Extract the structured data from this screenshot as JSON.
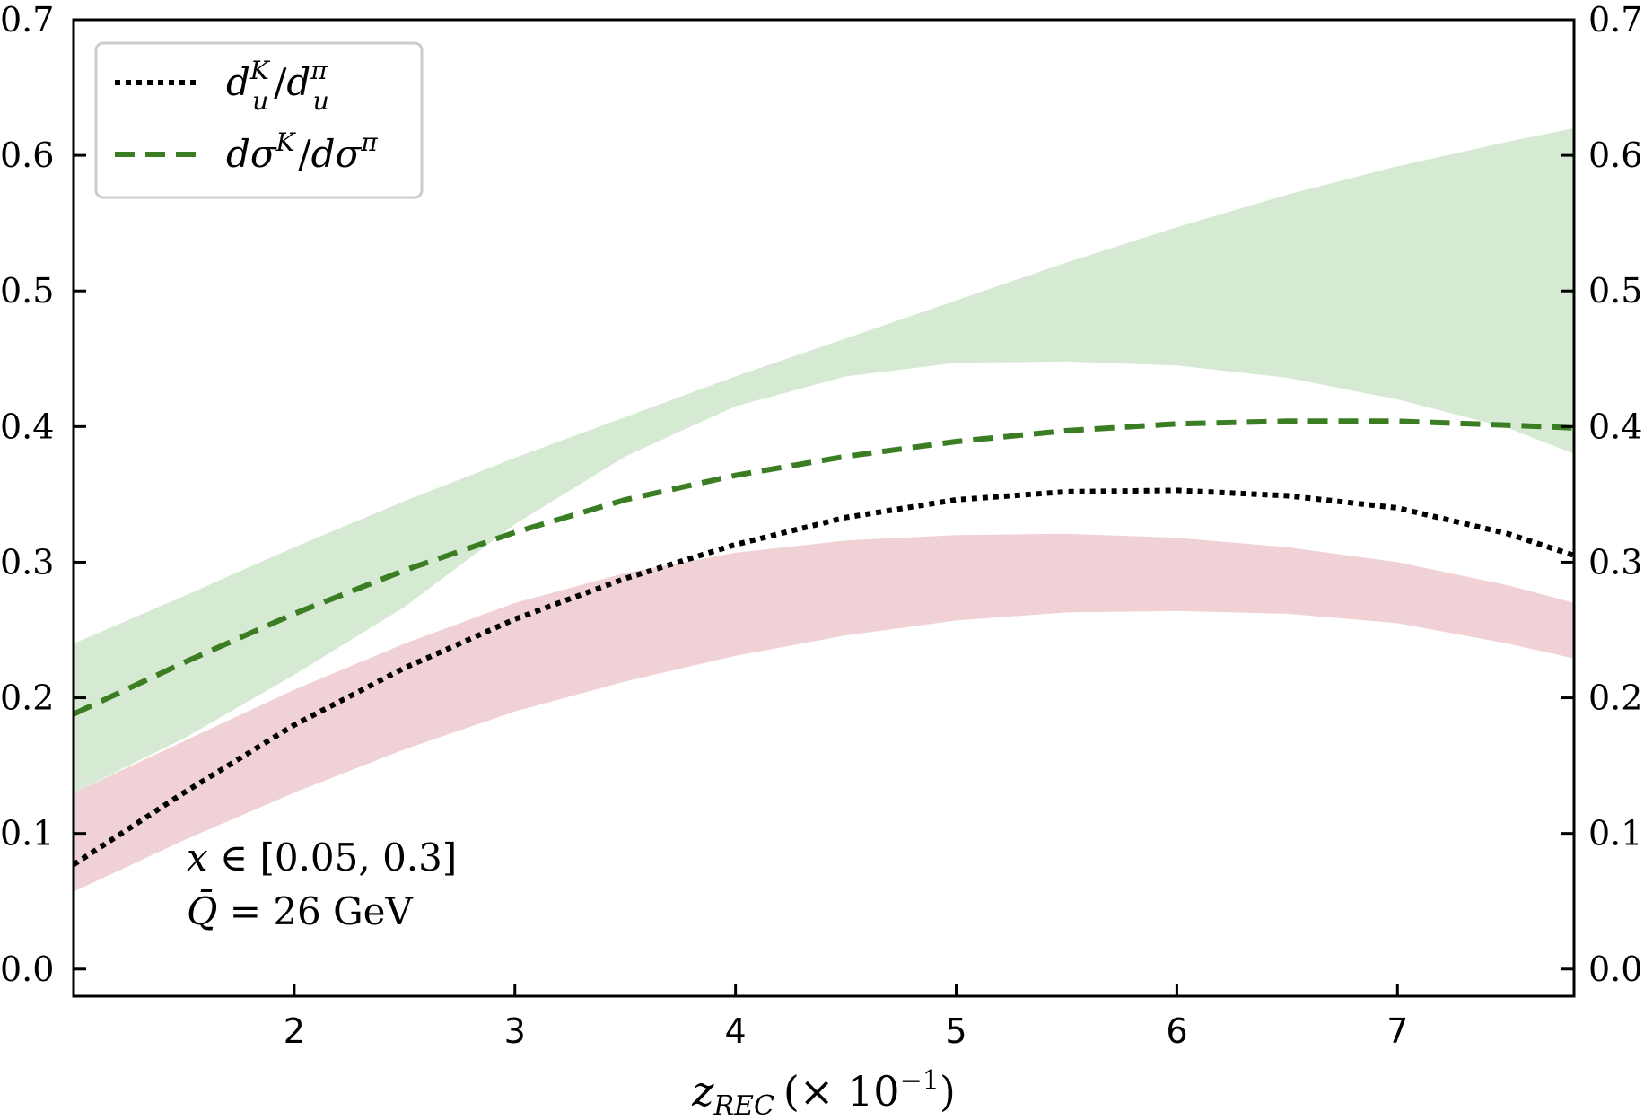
{
  "chart_data": {
    "type": "line",
    "xlabel": {
      "var": "z",
      "sub": "REC",
      "factor": "(× 10",
      "exp": "−1",
      "close": ")"
    },
    "ylabel": "",
    "xlim": [
      1.0,
      7.8
    ],
    "ylim": [
      -0.02,
      0.7
    ],
    "x_ticks": [
      2,
      3,
      4,
      5,
      6,
      7
    ],
    "x_tick_labels": [
      "2",
      "3",
      "4",
      "5",
      "6",
      "7"
    ],
    "y_ticks": [
      0.0,
      0.1,
      0.2,
      0.3,
      0.4,
      0.5,
      0.6,
      0.7
    ],
    "y_tick_labels": [
      "0.0",
      "0.1",
      "0.2",
      "0.3",
      "0.4",
      "0.5",
      "0.6",
      "0.7"
    ],
    "right_axis_labels": true,
    "grid": false,
    "legend_position": "top-left",
    "legend": [
      {
        "main": "d",
        "sup": "K",
        "sub": "u",
        "sep": "/",
        "main2": "d",
        "sup2": "π",
        "sub2": "u"
      },
      {
        "main": "dσ",
        "sup": "K",
        "sep": "/",
        "main2": "dσ",
        "sup2": "π"
      }
    ],
    "annotation": {
      "line1": {
        "var": "x",
        "rest": " ∈ [0.05, 0.3]"
      },
      "line2": {
        "var": "Q̄",
        "rest": " = 26 GeV"
      }
    },
    "x": [
      1.0,
      1.5,
      2.0,
      2.5,
      3.0,
      3.5,
      4.0,
      4.5,
      5.0,
      5.5,
      6.0,
      6.5,
      7.0,
      7.5,
      7.8
    ],
    "series": [
      {
        "style": "dotted",
        "color": "#000000",
        "values": [
          0.077,
          0.13,
          0.18,
          0.222,
          0.258,
          0.288,
          0.313,
          0.333,
          0.346,
          0.352,
          0.353,
          0.349,
          0.34,
          0.321,
          0.305
        ],
        "band_lower": [
          0.057,
          0.095,
          0.13,
          0.162,
          0.19,
          0.212,
          0.231,
          0.246,
          0.257,
          0.263,
          0.264,
          0.262,
          0.255,
          0.24,
          0.229
        ],
        "band_upper": [
          0.13,
          0.168,
          0.206,
          0.24,
          0.27,
          0.292,
          0.307,
          0.316,
          0.32,
          0.321,
          0.318,
          0.311,
          0.3,
          0.283,
          0.27
        ],
        "band_color": "#f0d2d6"
      },
      {
        "style": "dashed",
        "color": "#3a7d22",
        "values": [
          0.188,
          0.226,
          0.262,
          0.294,
          0.322,
          0.346,
          0.364,
          0.378,
          0.389,
          0.397,
          0.402,
          0.404,
          0.404,
          0.401,
          0.399
        ],
        "band_lower": [
          0.13,
          0.17,
          0.217,
          0.267,
          0.328,
          0.378,
          0.415,
          0.437,
          0.447,
          0.448,
          0.445,
          0.436,
          0.42,
          0.399,
          0.38
        ],
        "band_upper": [
          0.24,
          0.275,
          0.311,
          0.345,
          0.377,
          0.407,
          0.437,
          0.465,
          0.493,
          0.521,
          0.547,
          0.571,
          0.592,
          0.61,
          0.62
        ],
        "band_color": "#d6e9d3"
      }
    ],
    "overlap_color": "#cbc5b4"
  }
}
